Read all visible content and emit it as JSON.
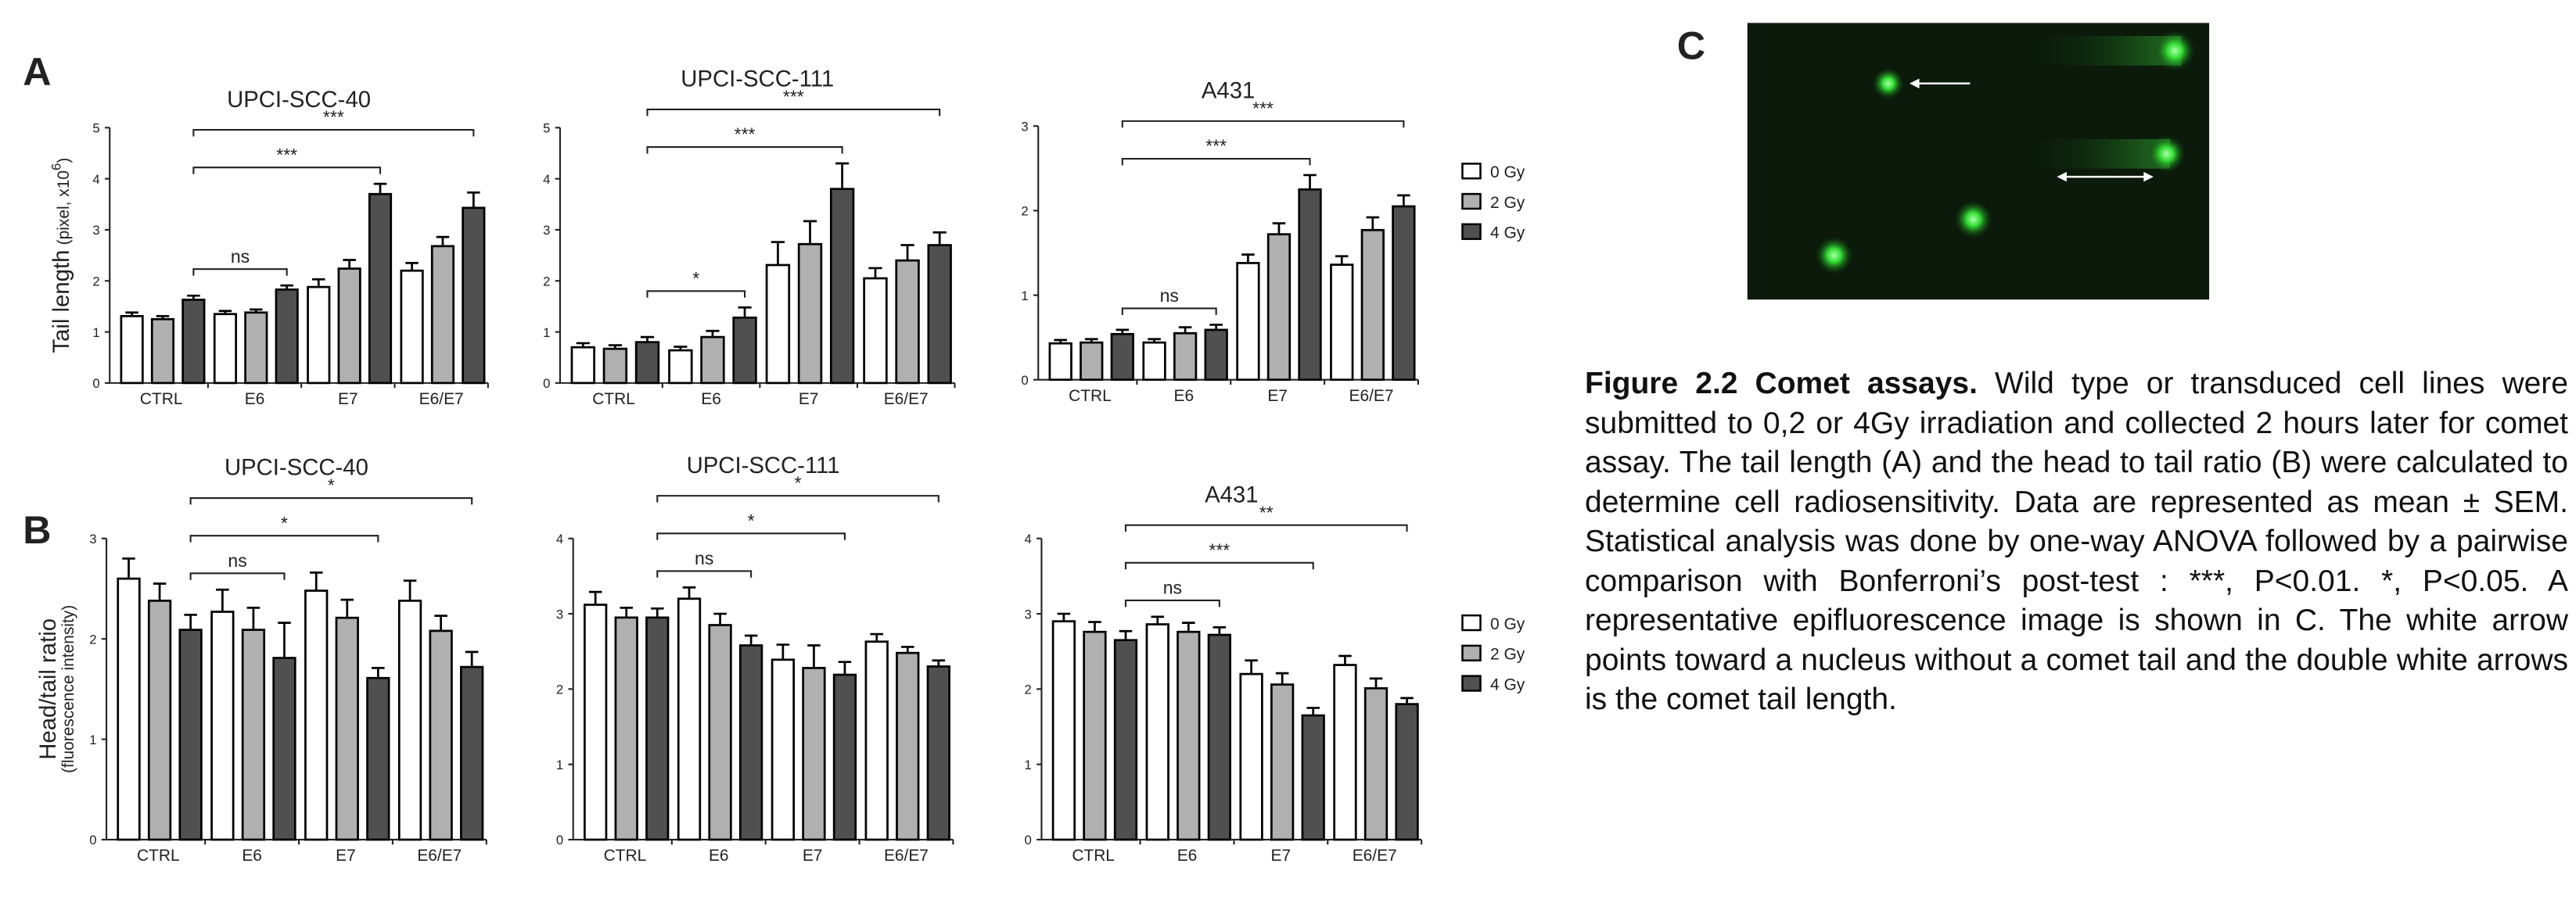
{
  "panel_labels": [
    "A",
    "B",
    "C"
  ],
  "caption": {
    "label": "Figure 2.2 Comet assays.",
    "text": "Wild type or transduced cell lines were submitted to 0,2 or 4Gy irradiation and collected 2 hours later for comet assay. The tail length (A) and the head to tail ratio (B) were calculated to determine cell radiosensitivity. Data are represented as mean ± SEM. Statistical analysis was done by one-way ANOVA followed by a pairwise comparison with Bonferroni’s post-test : ***, P<0.01. *, P<0.05. A representative epifluorescence image is shown in C. The white arrow points toward a nucleus without a comet tail and the double white arrows is the comet tail length."
  },
  "chart_data": [
    {
      "type": "bar",
      "title": "UPCI-SCC-40",
      "ylabel": {
        "main": "Tail length",
        "unit": "(pixel, x10",
        "sup": "6",
        "close": ")"
      },
      "categories": [
        "CTRL",
        "E6",
        "E7",
        "E6/E7"
      ],
      "series": [
        {
          "color": "#ffffff",
          "values": [
            1.31,
            1.35,
            1.88,
            2.2
          ],
          "errors": [
            0.07,
            0.06,
            0.15,
            0.15
          ]
        },
        {
          "color": "#b0b0b0",
          "values": [
            1.25,
            1.38,
            2.24,
            2.68
          ],
          "errors": [
            0.06,
            0.06,
            0.17,
            0.18
          ]
        },
        {
          "color": "#505050",
          "values": [
            1.63,
            1.83,
            3.7,
            3.43
          ],
          "errors": [
            0.08,
            0.08,
            0.2,
            0.3
          ]
        }
      ],
      "ylim": [
        0,
        5
      ],
      "yticks": [
        0,
        1,
        2,
        3,
        4,
        5
      ],
      "brackets": [
        {
          "from": [
            0,
            2
          ],
          "to": [
            1,
            2
          ],
          "label": "ns"
        },
        {
          "from": [
            0,
            2
          ],
          "to": [
            2,
            2
          ],
          "label": "***"
        },
        {
          "from": [
            0,
            2
          ],
          "to": [
            3,
            2
          ],
          "label": "***"
        }
      ]
    },
    {
      "type": "bar",
      "title": "UPCI-SCC-111",
      "categories": [
        "CTRL",
        "E6",
        "E7",
        "E6/E7"
      ],
      "series": [
        {
          "color": "#ffffff",
          "values": [
            0.7,
            0.64,
            2.31,
            2.05
          ],
          "errors": [
            0.08,
            0.07,
            0.45,
            0.2
          ]
        },
        {
          "color": "#b0b0b0",
          "values": [
            0.67,
            0.9,
            2.72,
            2.4
          ],
          "errors": [
            0.07,
            0.12,
            0.45,
            0.3
          ]
        },
        {
          "color": "#505050",
          "values": [
            0.8,
            1.28,
            3.8,
            2.7
          ],
          "errors": [
            0.1,
            0.2,
            0.5,
            0.25
          ]
        }
      ],
      "ylim": [
        0,
        5
      ],
      "yticks": [
        0,
        1,
        2,
        3,
        4,
        5
      ],
      "brackets": [
        {
          "from": [
            0,
            2
          ],
          "to": [
            1,
            2
          ],
          "label": "*"
        },
        {
          "from": [
            0,
            2
          ],
          "to": [
            2,
            2
          ],
          "label": "***"
        },
        {
          "from": [
            0,
            2
          ],
          "to": [
            3,
            2
          ],
          "label": "***"
        }
      ]
    },
    {
      "type": "bar",
      "title": "A431",
      "categories": [
        "CTRL",
        "E6",
        "E7",
        "E6/E7"
      ],
      "series": [
        {
          "name": "0 Gy",
          "color": "#ffffff",
          "values": [
            0.43,
            0.44,
            1.38,
            1.36
          ],
          "errors": [
            0.04,
            0.04,
            0.1,
            0.1
          ]
        },
        {
          "name": "2 Gy",
          "color": "#b0b0b0",
          "values": [
            0.44,
            0.55,
            1.72,
            1.77
          ],
          "errors": [
            0.04,
            0.07,
            0.13,
            0.15
          ]
        },
        {
          "name": "4 Gy",
          "color": "#505050",
          "values": [
            0.54,
            0.59,
            2.25,
            2.05
          ],
          "errors": [
            0.05,
            0.06,
            0.17,
            0.13
          ]
        }
      ],
      "ylim": [
        0,
        3
      ],
      "yticks": [
        0,
        1,
        2,
        3
      ],
      "brackets": [
        {
          "from": [
            0,
            2
          ],
          "to": [
            1,
            2
          ],
          "label": "ns"
        },
        {
          "from": [
            0,
            2
          ],
          "to": [
            2,
            2
          ],
          "label": "***"
        },
        {
          "from": [
            0,
            2
          ],
          "to": [
            3,
            2
          ],
          "label": "***"
        }
      ]
    },
    {
      "type": "bar",
      "title": "UPCI-SCC-40",
      "ylabel": {
        "main": "Head/tail ratio",
        "unit": "(fluorescence intensity)"
      },
      "categories": [
        "CTRL",
        "E6",
        "E7",
        "E6/E7"
      ],
      "series": [
        {
          "color": "#ffffff",
          "values": [
            2.6,
            2.27,
            2.48,
            2.38
          ],
          "errors": [
            0.2,
            0.22,
            0.18,
            0.2
          ]
        },
        {
          "color": "#b0b0b0",
          "values": [
            2.38,
            2.09,
            2.21,
            2.08
          ],
          "errors": [
            0.17,
            0.22,
            0.18,
            0.15
          ]
        },
        {
          "color": "#505050",
          "values": [
            2.09,
            1.81,
            1.61,
            1.72
          ],
          "errors": [
            0.15,
            0.35,
            0.1,
            0.15
          ]
        }
      ],
      "ylim": [
        0,
        3
      ],
      "yticks": [
        0,
        1,
        2,
        3
      ],
      "brackets": [
        {
          "from": [
            0,
            2
          ],
          "to": [
            1,
            2
          ],
          "label": "ns"
        },
        {
          "from": [
            0,
            2
          ],
          "to": [
            2,
            2
          ],
          "label": "*"
        },
        {
          "from": [
            0,
            2
          ],
          "to": [
            3,
            2
          ],
          "label": "*"
        }
      ]
    },
    {
      "type": "bar",
      "title": "UPCI-SCC-111",
      "categories": [
        "CTRL",
        "E6",
        "E7",
        "E6/E7"
      ],
      "series": [
        {
          "color": "#ffffff",
          "values": [
            3.12,
            3.2,
            2.39,
            2.63
          ],
          "errors": [
            0.17,
            0.15,
            0.2,
            0.1
          ]
        },
        {
          "color": "#b0b0b0",
          "values": [
            2.95,
            2.85,
            2.28,
            2.48
          ],
          "errors": [
            0.13,
            0.15,
            0.3,
            0.08
          ]
        },
        {
          "color": "#505050",
          "values": [
            2.95,
            2.58,
            2.19,
            2.3
          ],
          "errors": [
            0.12,
            0.13,
            0.17,
            0.08
          ]
        }
      ],
      "ylim": [
        0,
        4
      ],
      "yticks": [
        0,
        1,
        2,
        3,
        4
      ],
      "brackets": [
        {
          "from": [
            0,
            2
          ],
          "to": [
            1,
            2
          ],
          "label": "ns"
        },
        {
          "from": [
            0,
            2
          ],
          "to": [
            2,
            2
          ],
          "label": "*"
        },
        {
          "from": [
            0,
            2
          ],
          "to": [
            3,
            2
          ],
          "label": "*"
        }
      ]
    },
    {
      "type": "bar",
      "title": "A431",
      "categories": [
        "CTRL",
        "E6",
        "E7",
        "E6/E7"
      ],
      "series": [
        {
          "name": "0 Gy",
          "color": "#ffffff",
          "values": [
            2.9,
            2.86,
            2.2,
            2.32
          ],
          "errors": [
            0.1,
            0.1,
            0.18,
            0.12
          ]
        },
        {
          "name": "2 Gy",
          "color": "#b0b0b0",
          "values": [
            2.76,
            2.76,
            2.06,
            2.01
          ],
          "errors": [
            0.13,
            0.12,
            0.15,
            0.13
          ]
        },
        {
          "name": "4 Gy",
          "color": "#505050",
          "values": [
            2.65,
            2.72,
            1.65,
            1.8
          ],
          "errors": [
            0.12,
            0.1,
            0.1,
            0.08
          ]
        }
      ],
      "ylim": [
        0,
        4
      ],
      "yticks": [
        0,
        1,
        2,
        3,
        4
      ],
      "brackets": [
        {
          "from": [
            0,
            2
          ],
          "to": [
            1,
            2
          ],
          "label": "ns"
        },
        {
          "from": [
            0,
            2
          ],
          "to": [
            2,
            2
          ],
          "label": "***"
        },
        {
          "from": [
            0,
            2
          ],
          "to": [
            3,
            2
          ],
          "label": "**"
        }
      ]
    }
  ]
}
